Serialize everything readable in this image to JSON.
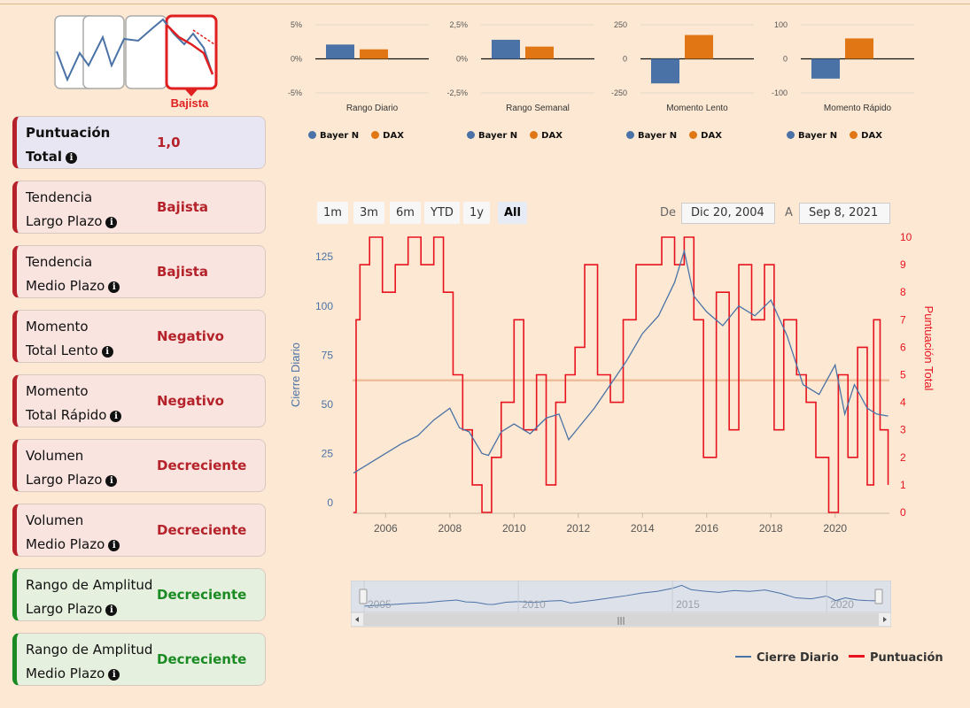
{
  "trend_logo": {
    "label": "Bajista",
    "icon": "bearish-trend-icon"
  },
  "cards": [
    {
      "line1": "Puntuación",
      "line2": "Total",
      "value": "1,0",
      "kind": "total"
    },
    {
      "line1": "Tendencia",
      "line2": "Largo Plazo",
      "value": "Bajista",
      "kind": "red"
    },
    {
      "line1": "Tendencia",
      "line2": "Medio Plazo",
      "value": "Bajista",
      "kind": "red"
    },
    {
      "line1": "Momento",
      "line2": "Total Lento",
      "value": "Negativo",
      "kind": "red"
    },
    {
      "line1": "Momento",
      "line2": "Total Rápido",
      "value": "Negativo",
      "kind": "red"
    },
    {
      "line1": "Volumen",
      "line2": "Largo Plazo",
      "value": "Decreciente",
      "kind": "red"
    },
    {
      "line1": "Volumen",
      "line2": "Medio Plazo",
      "value": "Decreciente",
      "kind": "red"
    },
    {
      "line1": "Rango de Amplitud",
      "line2": "Largo Plazo",
      "value": "Decreciente",
      "kind": "green"
    },
    {
      "line1": "Rango de Amplitud",
      "line2": "Medio Plazo",
      "value": "Decreciente",
      "kind": "green"
    }
  ],
  "colors": {
    "bayer": "#4a72a6",
    "dax": "#e07614",
    "cierre": "#4a72a6",
    "puntuacion": "#e8121f",
    "red_text": "#b5222a",
    "green_text": "#1a8a22",
    "avg_line": "#eebd9a"
  },
  "legend_small": {
    "bayer": "Bayer N",
    "dax": "DAX"
  },
  "range_selector": {
    "buttons": [
      "1m",
      "3m",
      "6m",
      "YTD",
      "1y",
      "All"
    ],
    "active": "All",
    "from_label": "De",
    "from_value": "Dic 20, 2004",
    "to_label": "A",
    "to_value": "Sep 8, 2021"
  },
  "chart_data": [
    {
      "type": "bar",
      "title": "Rango Diario",
      "categories": [
        "Rango Diario"
      ],
      "series": [
        {
          "name": "Bayer N",
          "values": [
            2.1
          ]
        },
        {
          "name": "DAX",
          "values": [
            1.4
          ]
        }
      ],
      "ylim": [
        -5,
        5
      ],
      "yticks": [
        "5%",
        "0%",
        "-5%"
      ],
      "ytick_values": [
        5,
        0,
        -5
      ]
    },
    {
      "type": "bar",
      "title": "Rango Semanal",
      "categories": [
        "Rango Semanal"
      ],
      "series": [
        {
          "name": "Bayer N",
          "values": [
            1.4
          ]
        },
        {
          "name": "DAX",
          "values": [
            0.9
          ]
        }
      ],
      "ylim": [
        -2.5,
        2.5
      ],
      "yticks": [
        "2,5%",
        "0%",
        "-2,5%"
      ],
      "ytick_values": [
        2.5,
        0,
        -2.5
      ]
    },
    {
      "type": "bar",
      "title": "Momento Lento",
      "categories": [
        "Momento Lento"
      ],
      "series": [
        {
          "name": "Bayer N",
          "values": [
            -180
          ]
        },
        {
          "name": "DAX",
          "values": [
            175
          ]
        }
      ],
      "ylim": [
        -250,
        250
      ],
      "yticks": [
        "250",
        "0",
        "-250"
      ],
      "ytick_values": [
        250,
        0,
        -250
      ]
    },
    {
      "type": "bar",
      "title": "Momento Rápido",
      "categories": [
        "Momento Rápido"
      ],
      "series": [
        {
          "name": "Bayer N",
          "values": [
            -58
          ]
        },
        {
          "name": "DAX",
          "values": [
            60
          ]
        }
      ],
      "ylim": [
        -100,
        100
      ],
      "yticks": [
        "100",
        "0",
        "-100"
      ],
      "ytick_values": [
        100,
        0,
        -100
      ]
    },
    {
      "type": "line",
      "title": "",
      "xlabel": "",
      "ylabel": "Cierre Diario",
      "y2label": "Puntuación Total",
      "xlim": [
        2004.97,
        2021.69
      ],
      "ylim": [
        -5,
        135
      ],
      "y2lim": [
        0,
        10
      ],
      "xticks": [
        2006,
        2008,
        2010,
        2012,
        2014,
        2016,
        2018,
        2020
      ],
      "yticks": [
        0,
        25,
        50,
        75,
        100,
        125
      ],
      "y2ticks": [
        0,
        1,
        2,
        3,
        4,
        5,
        6,
        7,
        8,
        9,
        10
      ],
      "average_score_line": 4.8,
      "series": [
        {
          "name": "Cierre Diario",
          "axis": "left",
          "x": [
            2005.0,
            2005.5,
            2006.0,
            2006.5,
            2007.0,
            2007.5,
            2008.0,
            2008.3,
            2008.6,
            2009.0,
            2009.2,
            2009.6,
            2010.0,
            2010.5,
            2011.0,
            2011.4,
            2011.7,
            2012.0,
            2012.5,
            2013.0,
            2013.5,
            2014.0,
            2014.5,
            2015.0,
            2015.3,
            2015.6,
            2016.0,
            2016.5,
            2017.0,
            2017.5,
            2018.0,
            2018.5,
            2019.0,
            2019.5,
            2020.0,
            2020.3,
            2020.6,
            2021.0,
            2021.3,
            2021.65
          ],
          "values": [
            15,
            20,
            25,
            30,
            34,
            42,
            48,
            38,
            36,
            25,
            24,
            36,
            40,
            35,
            43,
            45,
            32,
            38,
            48,
            60,
            72,
            86,
            95,
            112,
            128,
            105,
            97,
            90,
            100,
            95,
            103,
            85,
            60,
            55,
            70,
            45,
            60,
            48,
            45,
            44
          ]
        },
        {
          "name": "Puntuación",
          "axis": "right",
          "x": [
            2005.0,
            2005.08,
            2005.2,
            2005.5,
            2005.9,
            2006.3,
            2006.7,
            2007.1,
            2007.5,
            2007.8,
            2008.1,
            2008.4,
            2008.7,
            2009.0,
            2009.3,
            2009.6,
            2010.0,
            2010.3,
            2010.7,
            2011.0,
            2011.3,
            2011.6,
            2011.9,
            2012.2,
            2012.6,
            2013.0,
            2013.4,
            2013.8,
            2014.2,
            2014.6,
            2015.0,
            2015.3,
            2015.6,
            2015.9,
            2016.3,
            2016.7,
            2017.0,
            2017.4,
            2017.8,
            2018.1,
            2018.4,
            2018.8,
            2019.1,
            2019.4,
            2019.8,
            2020.1,
            2020.4,
            2020.7,
            2021.0,
            2021.2,
            2021.4,
            2021.65
          ],
          "values": [
            0,
            7,
            9,
            10,
            8,
            9,
            10,
            9,
            10,
            8,
            5,
            3,
            1,
            0,
            2,
            4,
            7,
            3,
            5,
            1,
            4,
            5,
            6,
            9,
            5,
            4,
            7,
            9,
            9,
            10,
            9,
            10,
            7,
            2,
            8,
            3,
            9,
            7,
            9,
            3,
            7,
            5,
            4,
            2,
            0,
            5,
            2,
            6,
            1,
            7,
            3,
            1
          ]
        }
      ],
      "navigator": {
        "xticks": [
          2005,
          2010,
          2015,
          2020
        ]
      }
    }
  ],
  "legend_bottom": {
    "cierre": "Cierre Diario",
    "puntuacion": "Puntuación"
  }
}
